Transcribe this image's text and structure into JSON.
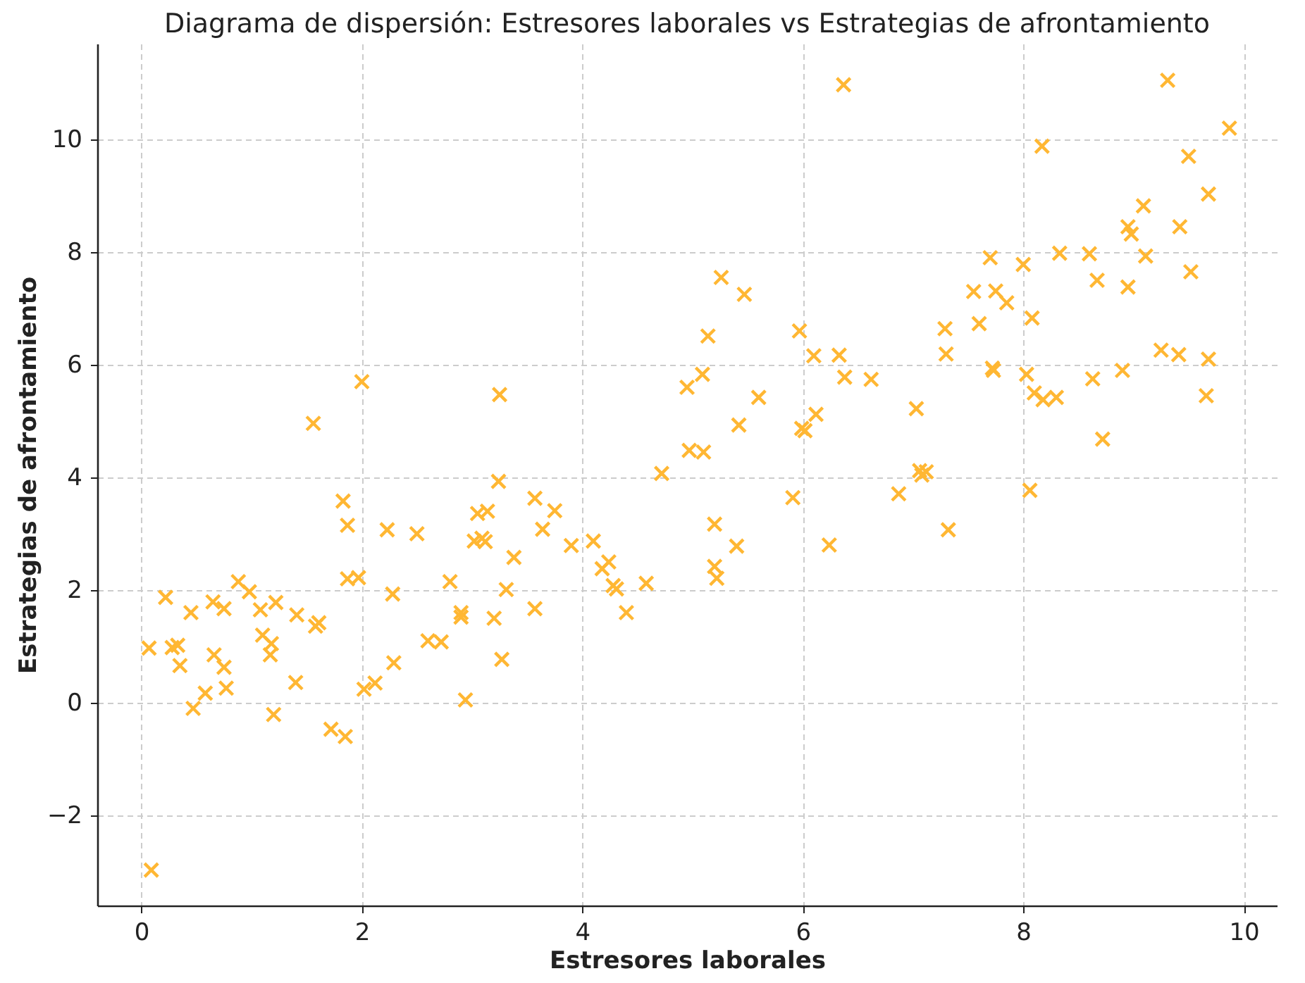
{
  "chart_data": {
    "type": "scatter",
    "title": "Diagrama de dispersión: Estresores laborales vs Estrategias de afrontamiento",
    "xlabel": "Estresores laborales",
    "ylabel": "Estrategias de afrontamiento",
    "xlim": [
      -0.4,
      10.3
    ],
    "ylim": [
      -3.6,
      11.7
    ],
    "xticks": [
      0,
      2,
      4,
      6,
      8,
      10
    ],
    "yticks": [
      -2,
      0,
      2,
      4,
      6,
      8,
      10
    ],
    "grid": true,
    "marker": "cross",
    "x": [
      0.07,
      0.09,
      0.22,
      0.28,
      0.33,
      0.35,
      0.45,
      0.47,
      0.58,
      0.65,
      0.66,
      0.75,
      0.75,
      0.77,
      0.88,
      0.98,
      1.08,
      1.1,
      1.17,
      1.18,
      1.2,
      1.22,
      1.4,
      1.41,
      1.56,
      1.58,
      1.61,
      1.72,
      1.83,
      1.85,
      1.87,
      1.87,
      1.97,
      2.0,
      2.02,
      2.12,
      2.23,
      2.28,
      2.29,
      2.5,
      2.6,
      2.72,
      2.8,
      2.9,
      2.9,
      2.94,
      3.02,
      3.05,
      3.09,
      3.12,
      3.14,
      3.2,
      3.24,
      3.25,
      3.27,
      3.31,
      3.38,
      3.57,
      3.57,
      3.64,
      3.75,
      3.9,
      4.1,
      4.18,
      4.24,
      4.28,
      4.31,
      4.4,
      4.58,
      4.72,
      4.95,
      4.97,
      5.09,
      5.1,
      5.14,
      5.2,
      5.2,
      5.22,
      5.26,
      5.4,
      5.42,
      5.47,
      5.6,
      5.91,
      5.97,
      5.99,
      6.02,
      6.1,
      6.12,
      6.24,
      6.33,
      6.37,
      6.38,
      6.62,
      6.87,
      7.03,
      7.06,
      7.08,
      7.12,
      7.29,
      7.3,
      7.32,
      7.55,
      7.6,
      7.7,
      7.72,
      7.73,
      7.75,
      7.85,
      8.0,
      8.03,
      8.06,
      8.08,
      8.1,
      8.17,
      8.18,
      8.3,
      8.33,
      8.6,
      8.63,
      8.67,
      8.72,
      8.9,
      8.95,
      8.95,
      8.98,
      9.09,
      9.11,
      9.25,
      9.31,
      9.41,
      9.42,
      9.5,
      9.52,
      9.66,
      9.68,
      9.68,
      9.87
    ],
    "series": [
      {
        "color": "#ffb733",
        "values": [
          0.97,
          -2.97,
          1.87,
          0.98,
          1.02,
          0.66,
          1.6,
          -0.1,
          0.17,
          1.79,
          0.85,
          1.67,
          0.63,
          0.26,
          2.15,
          1.97,
          1.65,
          1.2,
          0.85,
          1.05,
          -0.21,
          1.78,
          0.36,
          1.56,
          4.96,
          1.36,
          1.42,
          -0.47,
          3.58,
          -0.6,
          2.2,
          3.15,
          2.22,
          5.7,
          0.24,
          0.35,
          3.07,
          1.93,
          0.71,
          3.0,
          1.1,
          1.08,
          2.15,
          1.6,
          1.52,
          0.05,
          2.87,
          3.36,
          2.92,
          2.86,
          3.4,
          1.5,
          3.93,
          5.47,
          0.77,
          2.01,
          2.58,
          1.67,
          3.63,
          3.08,
          3.41,
          2.79,
          2.87,
          2.38,
          2.5,
          2.08,
          2.02,
          1.6,
          2.12,
          4.07,
          5.6,
          4.48,
          5.83,
          4.45,
          6.51,
          3.17,
          2.42,
          2.21,
          7.55,
          2.78,
          4.93,
          7.25,
          5.42,
          3.64,
          6.6,
          4.87,
          4.83,
          6.16,
          5.12,
          2.8,
          6.17,
          10.97,
          5.78,
          5.74,
          3.71,
          5.22,
          4.12,
          4.04,
          4.1,
          6.64,
          6.19,
          3.07,
          7.3,
          6.73,
          7.9,
          5.94,
          5.9,
          7.31,
          7.1,
          7.78,
          5.83,
          3.77,
          6.83,
          5.5,
          9.88,
          5.38,
          5.42,
          7.98,
          7.97,
          5.75,
          7.5,
          4.68,
          5.9,
          7.38,
          8.45,
          8.32,
          8.82,
          7.93,
          6.26,
          11.05,
          6.18,
          8.45,
          9.7,
          7.65,
          5.45,
          6.1,
          9.03,
          10.2
        ]
      }
    ]
  }
}
